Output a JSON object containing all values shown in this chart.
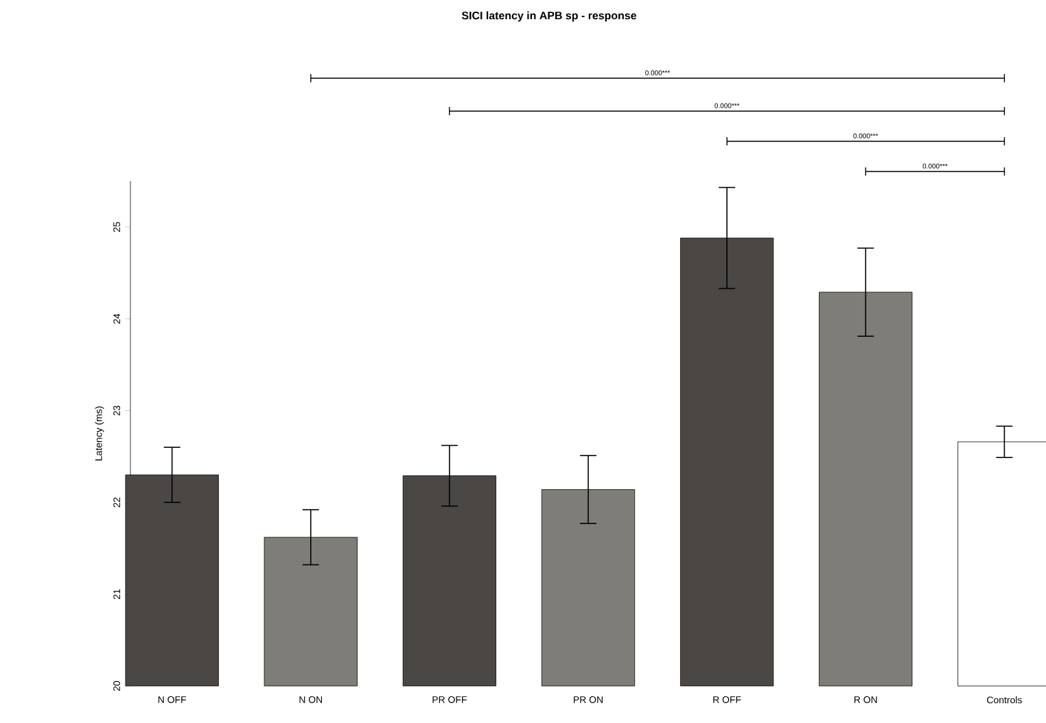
{
  "chart_data": {
    "type": "bar",
    "title": "SICI latency in APB sp - response",
    "ylabel": "Latency (ms)",
    "categories": [
      "N OFF",
      "N ON",
      "PR OFF",
      "PR ON",
      "R OFF",
      "R ON",
      "Controls"
    ],
    "values": [
      22.3,
      21.62,
      22.29,
      22.14,
      24.88,
      24.29,
      22.66
    ],
    "errors": [
      0.3,
      0.3,
      0.33,
      0.37,
      0.55,
      0.48,
      0.17
    ],
    "colors": [
      "#4a4745",
      "#7f7d78",
      "#4a4745",
      "#7f7d78",
      "#4a4745",
      "#7f7d78",
      "#ffffff"
    ],
    "ylim": [
      20,
      25.5
    ],
    "yticks": [
      20,
      21,
      22,
      23,
      24,
      25
    ],
    "grid": false,
    "annotations": [
      "0.000***",
      "0.000***",
      "0.000***",
      "0.000***"
    ]
  }
}
